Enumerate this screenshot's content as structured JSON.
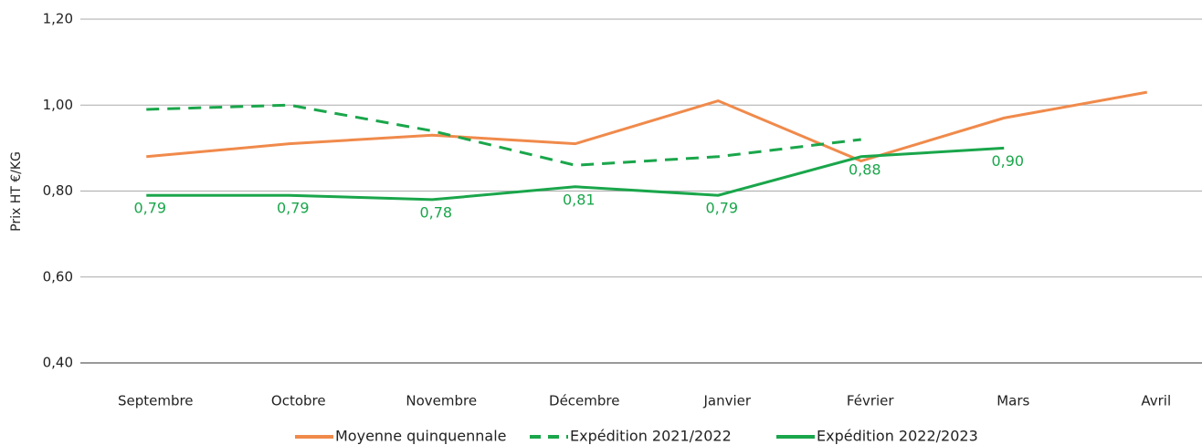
{
  "chart_data": {
    "type": "line",
    "y_label": "Prix HT €/KG",
    "categories": [
      "Septembre",
      "Octobre",
      "Novembre",
      "Décembre",
      "Janvier",
      "Février",
      "Mars",
      "Avril"
    ],
    "series": [
      {
        "name": "Moyenne quinquennale",
        "color": "#f08a4b",
        "dash": false,
        "values": [
          0.88,
          0.91,
          0.93,
          0.91,
          1.01,
          0.87,
          0.97,
          1.03
        ]
      },
      {
        "name": "Expédition 2021/2022",
        "color": "#1aa64b",
        "dash": true,
        "values": [
          0.99,
          1.0,
          0.94,
          0.86,
          0.88,
          0.92,
          null,
          null
        ]
      },
      {
        "name": "Expédition 2022/2023",
        "color": "#1aa64b",
        "dash": false,
        "values": [
          0.79,
          0.79,
          0.78,
          0.81,
          0.79,
          0.88,
          0.9,
          null
        ],
        "value_labels": [
          "0,79",
          "0,79",
          "0,78",
          "0,81",
          "0,79",
          "0,88",
          "0,90",
          null
        ]
      }
    ],
    "ylim": [
      0.4,
      1.2
    ],
    "yticks": [
      {
        "value": 0.4,
        "label": "0,40"
      },
      {
        "value": 0.6,
        "label": "0,60"
      },
      {
        "value": 0.8,
        "label": "0,80"
      },
      {
        "value": 1.0,
        "label": "1,00"
      },
      {
        "value": 1.2,
        "label": "1,20"
      }
    ],
    "grid": true,
    "legend": "bottom"
  }
}
